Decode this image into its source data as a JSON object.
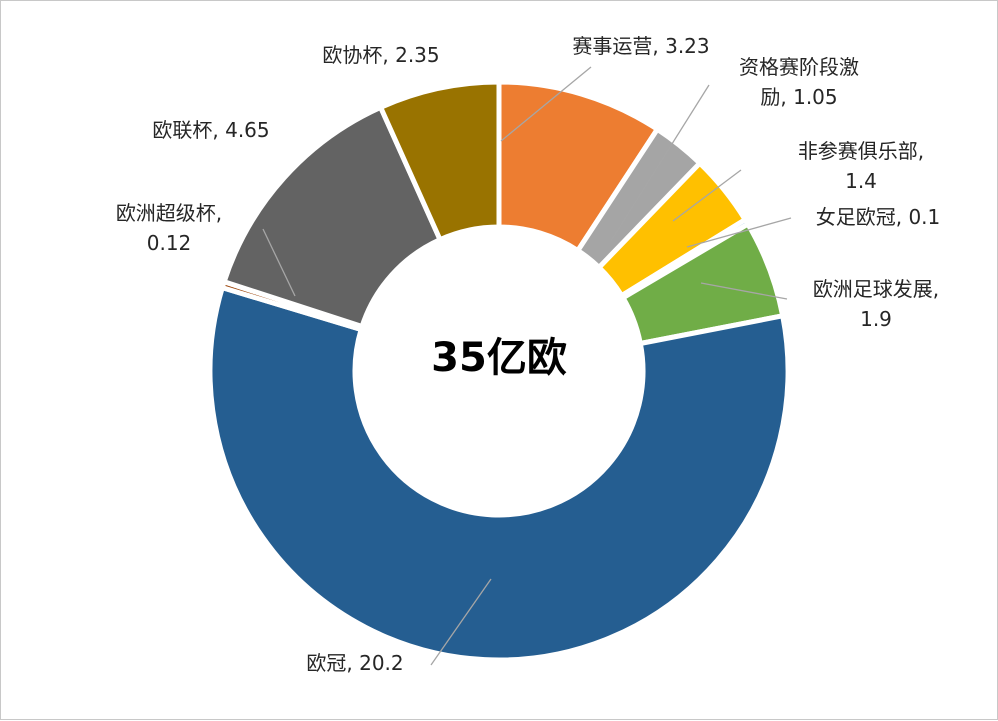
{
  "chart_data": {
    "type": "pie",
    "variant": "donut",
    "center_label": "35亿欧",
    "slices": [
      {
        "name": "赛事运营",
        "value": 3.23,
        "color": "#ed7d31",
        "label_lines": [
          "赛事运营, 3.23"
        ]
      },
      {
        "name": "资格赛阶段激励",
        "value": 1.05,
        "color": "#a5a5a5",
        "label_lines": [
          "资格赛阶段激",
          "励, 1.05"
        ]
      },
      {
        "name": "非参赛俱乐部",
        "value": 1.4,
        "color": "#ffc000",
        "label_lines": [
          "非参赛俱乐部,",
          "1.4"
        ]
      },
      {
        "name": "女足欧冠",
        "value": 0.1,
        "color": "#5b9bd5",
        "label_lines": [
          "女足欧冠, 0.1"
        ]
      },
      {
        "name": "欧洲足球发展",
        "value": 1.9,
        "color": "#70ad47",
        "label_lines": [
          "欧洲足球发展,",
          "1.9"
        ]
      },
      {
        "name": "欧冠",
        "value": 20.2,
        "color": "#255e91",
        "label_lines": [
          "欧冠, 20.2"
        ]
      },
      {
        "name": "欧洲超级杯",
        "value": 0.12,
        "color": "#9e480e",
        "label_lines": [
          "欧洲超级杯,",
          "0.12"
        ]
      },
      {
        "name": "欧联杯",
        "value": 4.65,
        "color": "#636363",
        "label_lines": [
          "欧联杯, 4.65"
        ]
      },
      {
        "name": "欧协杯",
        "value": 2.35,
        "color": "#997300",
        "label_lines": [
          "欧协杯, 2.35"
        ]
      }
    ]
  }
}
